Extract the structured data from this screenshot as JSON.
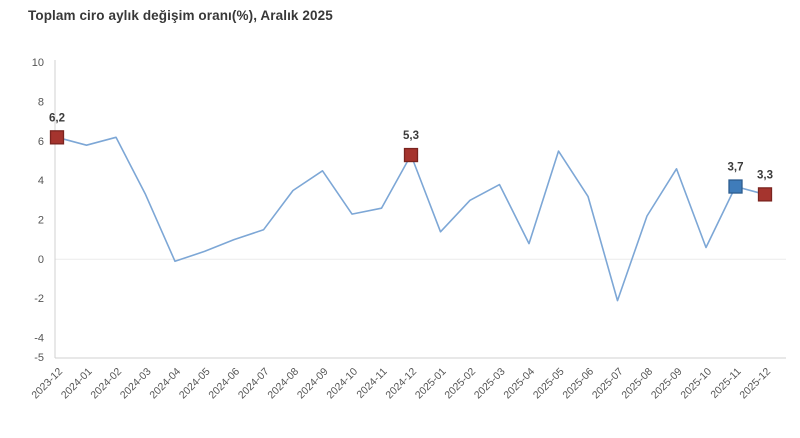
{
  "page": {
    "title": "Toplam ciro aylık değişim oranı(%), Aralık 2025"
  },
  "chart_data": {
    "type": "line",
    "title": "Toplam ciro aylık değişim oranı(%), Aralık 2025",
    "categories": [
      "2023-12",
      "2024-01",
      "2024-02",
      "2024-03",
      "2024-04",
      "2024-05",
      "2024-06",
      "2024-07",
      "2024-08",
      "2024-09",
      "2024-10",
      "2024-11",
      "2024-12",
      "2025-01",
      "2025-02",
      "2025-03",
      "2025-04",
      "2025-05",
      "2025-06",
      "2025-07",
      "2025-08",
      "2025-09",
      "2025-10",
      "2025-11",
      "2025-12"
    ],
    "values": [
      6.2,
      5.8,
      6.2,
      3.3,
      -0.1,
      0.4,
      1.0,
      1.5,
      3.5,
      4.5,
      2.3,
      2.6,
      5.3,
      1.4,
      3.0,
      3.8,
      0.8,
      5.5,
      3.2,
      -2.1,
      2.2,
      4.6,
      0.6,
      3.7,
      3.3
    ],
    "ylim": [
      -5,
      10
    ],
    "yticks": [
      10,
      8,
      6,
      4,
      2,
      0,
      -2,
      -4,
      -5
    ],
    "gridlines": "zero-line-only",
    "legend": "none",
    "annotations": [
      {
        "index": 0,
        "label": "6,2",
        "marker": "red"
      },
      {
        "index": 12,
        "label": "5,3",
        "marker": "red"
      },
      {
        "index": 23,
        "label": "3,7",
        "marker": "blue"
      },
      {
        "index": 24,
        "label": "3,3",
        "marker": "red"
      }
    ],
    "colors": {
      "line": "#7da7d6",
      "marker_red": "#a5342e",
      "marker_red_border": "#7a241f",
      "marker_blue": "#3f7cba",
      "marker_blue_border": "#2d5c8e",
      "annotation_text": "#3c3c3c",
      "tick_text": "#555555",
      "axis_line": "#d0d0d0",
      "zero_gridline": "#ebebeb",
      "title_text": "#383838",
      "background": "#ffffff"
    }
  }
}
